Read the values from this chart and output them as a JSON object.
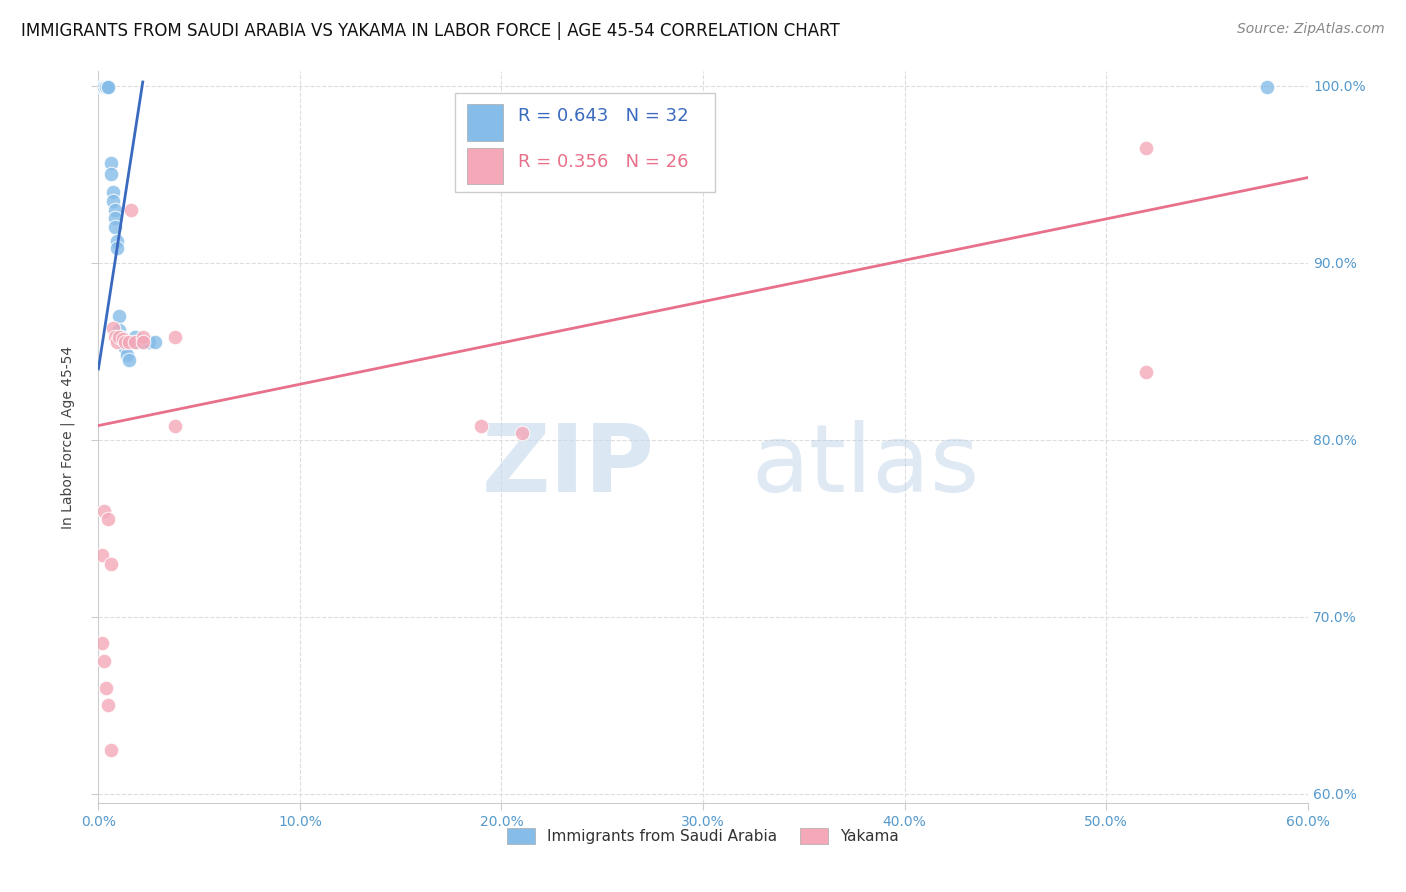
{
  "title": "IMMIGRANTS FROM SAUDI ARABIA VS YAKAMA IN LABOR FORCE | AGE 45-54 CORRELATION CHART",
  "source": "Source: ZipAtlas.com",
  "ylabel": "In Labor Force | Age 45-54",
  "xlim": [
    0.0,
    0.6
  ],
  "ylim": [
    0.595,
    1.008
  ],
  "xtick_vals": [
    0.0,
    0.1,
    0.2,
    0.3,
    0.4,
    0.5,
    0.6
  ],
  "xtick_labels": [
    "0.0%",
    "10.0%",
    "20.0%",
    "30.0%",
    "40.0%",
    "50.0%",
    "60.0%"
  ],
  "ytick_vals": [
    0.6,
    0.7,
    0.8,
    0.9,
    1.0
  ],
  "ytick_labels": [
    "60.0%",
    "70.0%",
    "80.0%",
    "90.0%",
    "100.0%"
  ],
  "blue_R": "0.643",
  "blue_N": "32",
  "pink_R": "0.356",
  "pink_N": "26",
  "blue_scatter_x": [
    0.002,
    0.002,
    0.003,
    0.003,
    0.004,
    0.004,
    0.004,
    0.004,
    0.005,
    0.005,
    0.006,
    0.006,
    0.007,
    0.007,
    0.008,
    0.008,
    0.008,
    0.009,
    0.009,
    0.01,
    0.01,
    0.011,
    0.012,
    0.013,
    0.014,
    0.015,
    0.018,
    0.019,
    0.022,
    0.025,
    0.028,
    0.58
  ],
  "blue_scatter_y": [
    0.999,
    0.999,
    0.999,
    0.999,
    0.999,
    0.999,
    0.999,
    0.999,
    0.999,
    0.999,
    0.956,
    0.95,
    0.94,
    0.935,
    0.93,
    0.925,
    0.92,
    0.912,
    0.908,
    0.87,
    0.862,
    0.858,
    0.855,
    0.852,
    0.848,
    0.845,
    0.858,
    0.855,
    0.855,
    0.855,
    0.855,
    0.999
  ],
  "pink_scatter_x": [
    0.002,
    0.003,
    0.005,
    0.006,
    0.007,
    0.008,
    0.009,
    0.01,
    0.012,
    0.013,
    0.015,
    0.016,
    0.018,
    0.022,
    0.022,
    0.038,
    0.038,
    0.19,
    0.21,
    0.52,
    0.52,
    0.002,
    0.003,
    0.004,
    0.005,
    0.006
  ],
  "pink_scatter_y": [
    0.735,
    0.76,
    0.755,
    0.73,
    0.863,
    0.858,
    0.855,
    0.858,
    0.857,
    0.855,
    0.855,
    0.93,
    0.855,
    0.858,
    0.855,
    0.858,
    0.808,
    0.808,
    0.804,
    0.965,
    0.838,
    0.685,
    0.675,
    0.66,
    0.65,
    0.625
  ],
  "blue_line_x": [
    0.0,
    0.022
  ],
  "blue_line_y": [
    0.84,
    1.002
  ],
  "pink_line_x": [
    0.0,
    0.6
  ],
  "pink_line_y": [
    0.808,
    0.948
  ],
  "watermark_zip": "ZIP",
  "watermark_atlas": "atlas",
  "bg_color": "#ffffff",
  "grid_color": "#dddddd",
  "blue_color": "#85bce8",
  "pink_color": "#f4a8b8",
  "blue_line_color": "#3a6abf",
  "pink_line_color": "#e8708a",
  "title_fontsize": 12,
  "source_fontsize": 10,
  "axis_label_fontsize": 10,
  "tick_fontsize": 10,
  "legend_fontsize": 13
}
